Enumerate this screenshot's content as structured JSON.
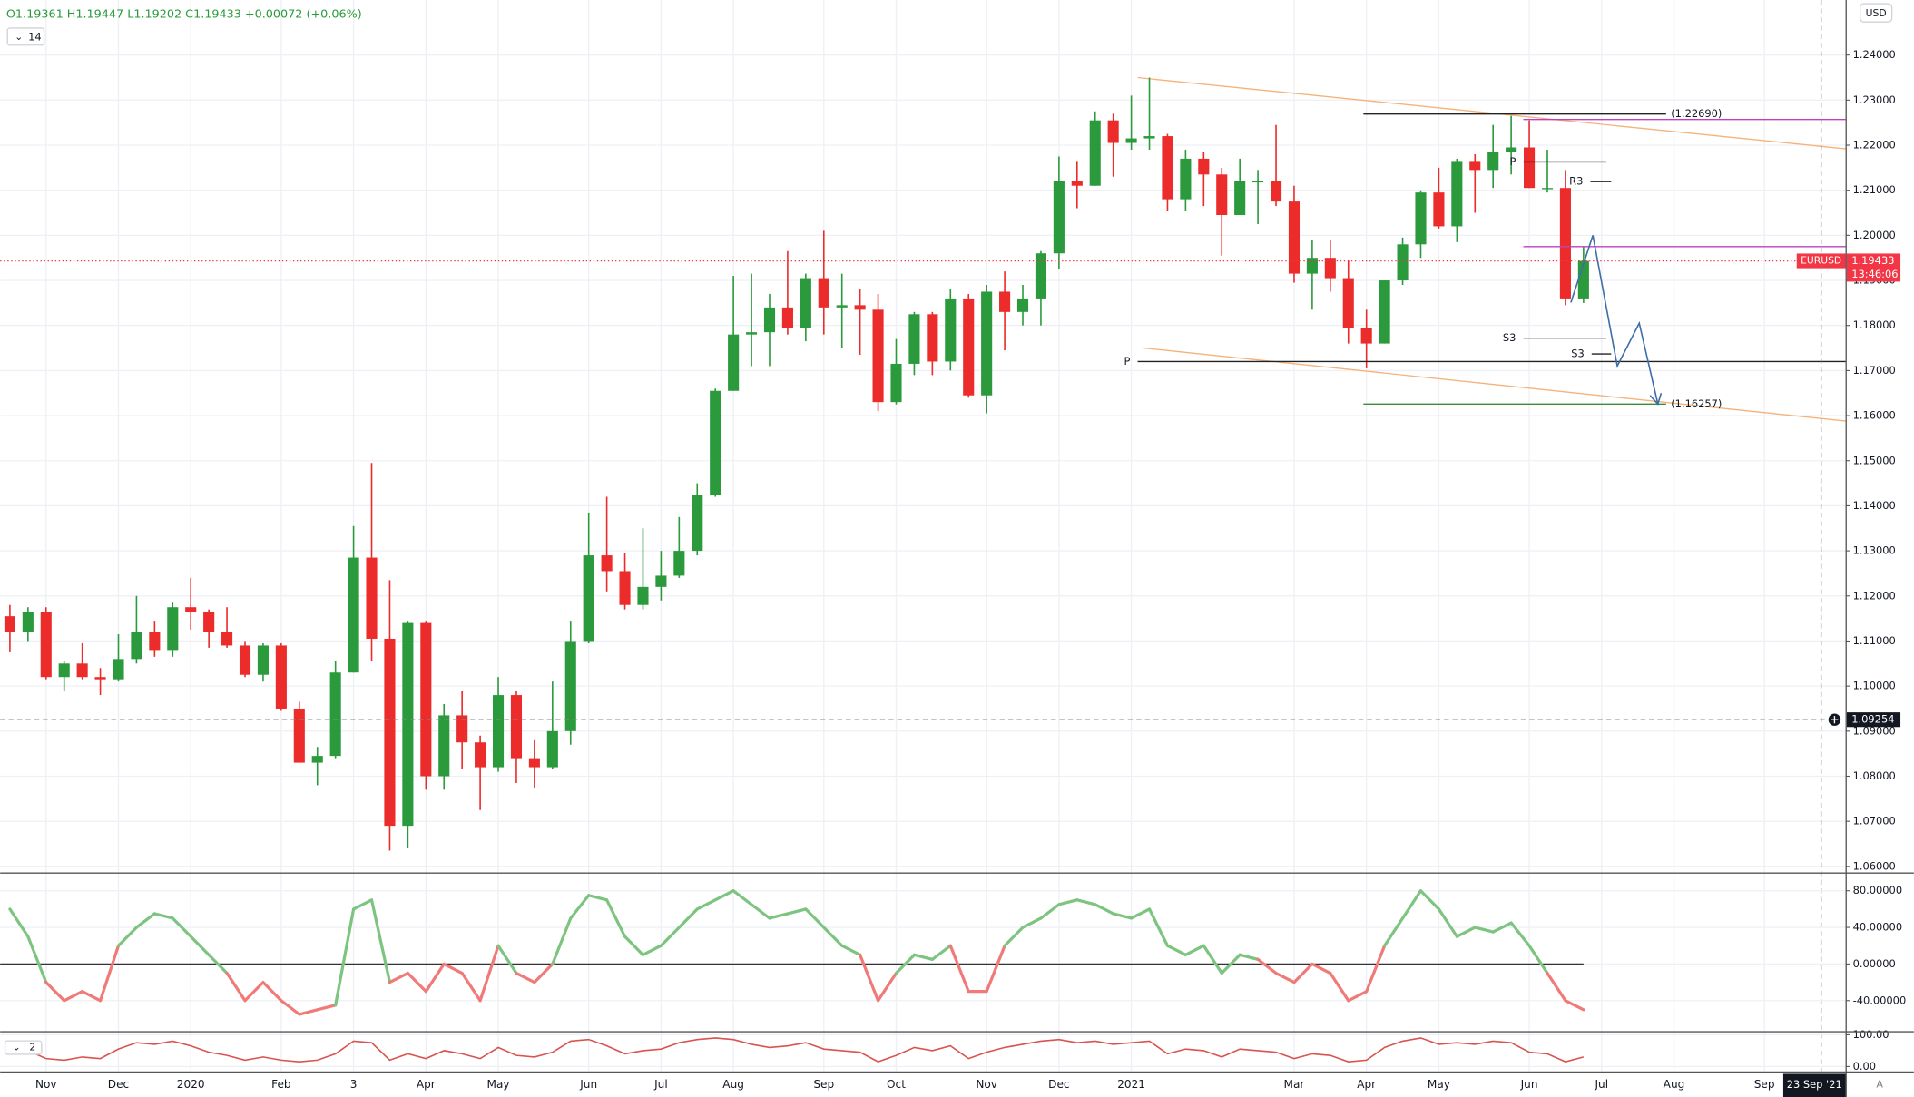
{
  "ui": {
    "currency": "USD",
    "auto": "A"
  },
  "chart_data": [
    {
      "type": "candlestick",
      "header": {
        "ohlc": "O1.19361 H1.19447 L1.19202 C1.19433 +0.00072 (+0.06%)",
        "indicator": "14"
      },
      "categories": [
        null,
        null,
        "Nov",
        null,
        null,
        null,
        "Dec",
        null,
        null,
        null,
        "2020",
        null,
        null,
        null,
        null,
        "Feb",
        null,
        null,
        null,
        "3",
        null,
        null,
        null,
        "Apr",
        null,
        null,
        null,
        "May",
        null,
        null,
        null,
        null,
        "Jun",
        null,
        null,
        null,
        "Jul",
        null,
        null,
        null,
        "Aug",
        null,
        null,
        null,
        null,
        "Sep",
        null,
        null,
        null,
        "Oct",
        null,
        null,
        null,
        null,
        "Nov",
        null,
        null,
        null,
        "Dec",
        null,
        null,
        null,
        "2021",
        null,
        null,
        null,
        null,
        null,
        null,
        null,
        null,
        "Mar",
        null,
        null,
        null,
        "Apr",
        null,
        null,
        null,
        "May",
        null,
        null,
        null,
        null,
        "Jun",
        null,
        null,
        null,
        "Jul",
        null,
        null,
        null,
        "Aug",
        null,
        null,
        null,
        null,
        "Sep",
        null,
        null,
        null
      ],
      "open": [
        1.1155,
        1.112,
        1.1165,
        1.102,
        1.105,
        1.102,
        1.1015,
        1.106,
        1.112,
        1.108,
        1.1175,
        1.1165,
        1.112,
        1.109,
        1.1025,
        1.109,
        1.095,
        1.083,
        1.0845,
        1.103,
        1.1285,
        1.1105,
        1.069,
        1.114,
        1.08,
        1.0935,
        1.0875,
        1.082,
        1.098,
        1.084,
        1.082,
        1.09,
        1.11,
        1.129,
        1.1255,
        1.118,
        1.122,
        1.1245,
        1.13,
        1.1425,
        1.1655,
        1.178,
        1.1785,
        1.184,
        1.1795,
        1.1905,
        1.184,
        1.1845,
        1.1835,
        1.163,
        1.1715,
        1.1825,
        1.172,
        1.186,
        1.1645,
        1.1875,
        1.183,
        1.186,
        1.196,
        1.212,
        1.211,
        1.2255,
        1.2205,
        1.2215,
        1.222,
        1.208,
        1.217,
        1.2135,
        1.2045,
        1.212,
        1.212,
        1.2075,
        1.1915,
        1.195,
        1.1905,
        1.1795,
        1.176,
        1.19,
        1.198,
        1.2095,
        1.202,
        1.2165,
        1.2145,
        1.2185,
        1.2195,
        1.2105,
        1.2105,
        1.186,
        null,
        null,
        null,
        null,
        null,
        null,
        null,
        null,
        null,
        null,
        null,
        null,
        null
      ],
      "high": [
        1.118,
        1.1175,
        1.1175,
        1.1055,
        1.1095,
        1.104,
        1.1115,
        1.12,
        1.1145,
        1.1185,
        1.124,
        1.117,
        1.1175,
        1.11,
        1.1095,
        1.1095,
        1.0965,
        1.0865,
        1.1055,
        1.1355,
        1.1495,
        1.1235,
        1.1145,
        1.1145,
        1.096,
        1.099,
        1.089,
        1.102,
        1.099,
        1.088,
        1.101,
        1.1145,
        1.1385,
        1.142,
        1.1295,
        1.135,
        1.13,
        1.1375,
        1.145,
        1.166,
        1.191,
        1.1915,
        1.187,
        1.1965,
        1.1915,
        1.201,
        1.1915,
        1.188,
        1.187,
        1.177,
        1.183,
        1.183,
        1.188,
        1.187,
        1.189,
        1.192,
        1.189,
        1.1965,
        1.2175,
        1.2165,
        1.2275,
        1.227,
        1.231,
        1.235,
        1.2225,
        1.219,
        1.2185,
        1.215,
        1.217,
        1.2145,
        1.2245,
        1.211,
        1.199,
        1.199,
        1.1945,
        1.1835,
        1.19,
        1.1995,
        1.21,
        1.215,
        1.217,
        1.218,
        1.2245,
        1.2265,
        1.2255,
        1.219,
        1.2145,
        1.1975,
        null,
        null,
        null,
        null,
        null,
        null,
        null,
        null,
        null,
        null,
        null,
        null,
        null
      ],
      "low": [
        1.1075,
        1.11,
        1.1015,
        1.099,
        1.1015,
        1.098,
        1.101,
        1.105,
        1.1065,
        1.1065,
        1.1125,
        1.1085,
        1.1085,
        1.102,
        1.101,
        1.0945,
        1.083,
        1.078,
        1.084,
        1.103,
        1.1055,
        1.0635,
        1.064,
        1.077,
        1.077,
        1.0815,
        1.0725,
        1.081,
        1.0785,
        1.0775,
        1.0815,
        1.087,
        1.1095,
        1.121,
        1.117,
        1.117,
        1.119,
        1.124,
        1.129,
        1.142,
        1.1655,
        1.171,
        1.171,
        1.178,
        1.1765,
        1.178,
        1.175,
        1.1735,
        1.161,
        1.1625,
        1.169,
        1.169,
        1.17,
        1.164,
        1.1605,
        1.1745,
        1.18,
        1.18,
        1.1925,
        1.206,
        1.211,
        1.213,
        1.219,
        1.219,
        1.2055,
        1.2055,
        1.2065,
        1.1955,
        1.2045,
        1.2025,
        1.2065,
        1.1895,
        1.1835,
        1.1875,
        1.176,
        1.1705,
        1.176,
        1.189,
        1.195,
        1.2015,
        1.1985,
        1.205,
        1.2105,
        1.2135,
        1.2105,
        1.2095,
        1.1845,
        1.185,
        null,
        null,
        null,
        null,
        null,
        null,
        null,
        null,
        null,
        null,
        null,
        null,
        null
      ],
      "close": [
        1.112,
        1.1165,
        1.102,
        1.105,
        1.102,
        1.1015,
        1.106,
        1.112,
        1.108,
        1.1175,
        1.1165,
        1.112,
        1.109,
        1.1025,
        1.109,
        1.095,
        1.083,
        1.0845,
        1.103,
        1.1285,
        1.1105,
        1.069,
        1.114,
        1.08,
        1.0935,
        1.0875,
        1.082,
        1.098,
        1.084,
        1.082,
        1.09,
        1.11,
        1.129,
        1.1255,
        1.118,
        1.122,
        1.1245,
        1.13,
        1.1425,
        1.1655,
        1.178,
        1.1785,
        1.184,
        1.1795,
        1.1905,
        1.184,
        1.1845,
        1.1835,
        1.163,
        1.1715,
        1.1825,
        1.172,
        1.186,
        1.1645,
        1.1875,
        1.183,
        1.186,
        1.196,
        1.212,
        1.211,
        1.2255,
        1.2205,
        1.2215,
        1.222,
        1.208,
        1.217,
        1.2135,
        1.2045,
        1.212,
        1.212,
        1.2075,
        1.1915,
        1.195,
        1.1905,
        1.1795,
        1.176,
        1.19,
        1.198,
        1.2095,
        1.202,
        1.2165,
        1.2145,
        1.2185,
        1.2195,
        1.2105,
        1.2105,
        1.186,
        1.19433,
        null,
        null,
        null,
        null,
        null,
        null,
        null,
        null,
        null,
        null,
        null,
        null,
        null
      ],
      "up_color": "#2a9a3c",
      "down_color": "#ec2b2b",
      "ylim": [
        1.05865,
        1.25221
      ],
      "yticks": [
        {
          "value": 1.06,
          "label": "1.06000"
        },
        {
          "value": 1.07,
          "label": "1.07000"
        },
        {
          "value": 1.08,
          "label": "1.08000"
        },
        {
          "value": 1.09,
          "label": "1.09000"
        },
        {
          "value": 1.1,
          "label": "1.10000"
        },
        {
          "value": 1.11,
          "label": "1.11000"
        },
        {
          "value": 1.12,
          "label": "1.12000"
        },
        {
          "value": 1.13,
          "label": "1.13000"
        },
        {
          "value": 1.14,
          "label": "1.14000"
        },
        {
          "value": 1.15,
          "label": "1.15000"
        },
        {
          "value": 1.16,
          "label": "1.16000"
        },
        {
          "value": 1.17,
          "label": "1.17000"
        },
        {
          "value": 1.18,
          "label": "1.18000"
        },
        {
          "value": 1.19,
          "label": "1.19000"
        },
        {
          "value": 1.2,
          "label": "1.20000"
        },
        {
          "value": 1.21,
          "label": "1.21000"
        },
        {
          "value": 1.22,
          "label": "1.22000"
        },
        {
          "value": 1.23,
          "label": "1.23000"
        },
        {
          "value": 1.24,
          "label": "1.24000"
        }
      ],
      "grid": true,
      "last": {
        "symbol": "EURUSD",
        "value": 1.19433,
        "countdown": "13:46:06",
        "color": "#f23645"
      },
      "crosshair": {
        "price": 1.09254,
        "time": "23 Sep '21"
      },
      "levels": [
        {
          "label": "(1.22690)",
          "value": 1.2269,
          "color": "#222222"
        },
        {
          "label": "(1.16257)",
          "value": 1.16257,
          "color": "#3a8a3a"
        },
        {
          "label": "P",
          "value": 1.172,
          "color": "#222222"
        },
        {
          "label": "P",
          "value": 1.2163,
          "color": "#222222"
        },
        {
          "label": "R3",
          "value": 1.2119,
          "color": "#222222"
        },
        {
          "label": "S3",
          "value": 1.1772,
          "color": "#222222"
        },
        {
          "label": "S3",
          "value": 1.1737,
          "color": "#222222"
        },
        {
          "value": 1.2257,
          "color": "#c040c0"
        },
        {
          "value": 1.1975,
          "color": "#c040c0"
        }
      ],
      "trendlines": [
        {
          "values": [
            1.235,
            1.2192
          ],
          "color": "#f5b27a"
        },
        {
          "values": [
            1.175,
            1.1588
          ],
          "color": "#f5b27a"
        }
      ],
      "projection": {
        "values": [
          1.1851,
          1.2,
          1.171,
          1.1805,
          1.1629
        ],
        "color": "#3d6ea8"
      }
    },
    {
      "type": "line",
      "values": [
        60,
        30,
        -20,
        -40,
        -30,
        -40,
        20,
        40,
        55,
        50,
        30,
        10,
        -10,
        -40,
        -20,
        -40,
        -55,
        -50,
        -45,
        60,
        70,
        -20,
        -10,
        -30,
        0,
        -10,
        -40,
        20,
        -10,
        -20,
        0,
        50,
        75,
        70,
        30,
        10,
        20,
        40,
        60,
        70,
        80,
        65,
        50,
        55,
        60,
        40,
        20,
        10,
        -40,
        -10,
        10,
        5,
        20,
        -30,
        -30,
        20,
        40,
        50,
        65,
        70,
        65,
        55,
        50,
        60,
        20,
        10,
        20,
        -10,
        10,
        5,
        -10,
        -20,
        0,
        -10,
        -40,
        -30,
        20,
        50,
        80,
        60,
        30,
        40,
        35,
        45,
        20,
        -10,
        -40,
        -50,
        null,
        null,
        null,
        null,
        null,
        null,
        null,
        null,
        null,
        null,
        null,
        null,
        null
      ],
      "baseline": 0,
      "pos_color": "#7cc47f",
      "neg_color": "#f07a78",
      "ylim": [
        -73.33,
        98.67
      ],
      "yticks": [
        {
          "value": 80,
          "label": "80.00000"
        },
        {
          "value": 40,
          "label": "40.00000"
        },
        {
          "value": 0,
          "label": "0.00000"
        },
        {
          "value": -40,
          "label": "-40.00000"
        }
      ],
      "grid": true
    },
    {
      "type": "line",
      "label": "2",
      "values": [
        70,
        50,
        25,
        20,
        30,
        25,
        55,
        75,
        70,
        80,
        65,
        45,
        35,
        20,
        30,
        20,
        15,
        20,
        40,
        80,
        75,
        20,
        40,
        25,
        50,
        40,
        25,
        60,
        35,
        30,
        45,
        80,
        85,
        65,
        40,
        50,
        55,
        75,
        85,
        90,
        85,
        70,
        60,
        65,
        75,
        55,
        50,
        45,
        15,
        35,
        60,
        50,
        65,
        25,
        45,
        60,
        70,
        80,
        85,
        75,
        80,
        70,
        75,
        80,
        40,
        55,
        50,
        30,
        55,
        50,
        45,
        25,
        40,
        35,
        15,
        20,
        60,
        80,
        90,
        70,
        75,
        70,
        80,
        75,
        45,
        40,
        15,
        30,
        null,
        null,
        null,
        null,
        null,
        null,
        null,
        null,
        null,
        null,
        null,
        null,
        null
      ],
      "color": "#d9534f",
      "ylim": [
        -15.4,
        107.7
      ],
      "yticks": [
        {
          "value": 100,
          "label": "100.00"
        },
        {
          "value": 0,
          "label": "0.00"
        }
      ],
      "grid": true
    }
  ]
}
